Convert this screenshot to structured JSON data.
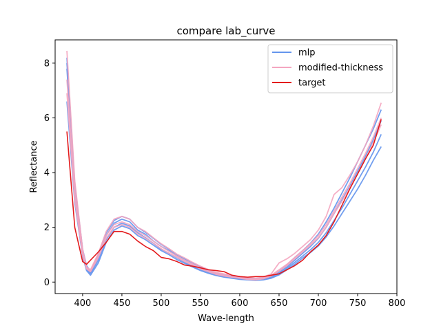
{
  "chart_data": {
    "type": "line",
    "title": "compare lab_curve",
    "xlabel": "Wave-length",
    "ylabel": "Reflectance",
    "xlim": [
      365,
      800
    ],
    "ylim": [
      -0.42,
      8.85
    ],
    "xticks": [
      400,
      450,
      500,
      550,
      600,
      650,
      700,
      750,
      800
    ],
    "yticks": [
      0,
      2,
      4,
      6,
      8
    ],
    "grid": false,
    "legend_position": "top-right",
    "x": [
      380,
      390,
      400,
      405,
      410,
      420,
      430,
      440,
      450,
      460,
      470,
      480,
      490,
      500,
      510,
      520,
      530,
      540,
      550,
      560,
      570,
      580,
      590,
      600,
      610,
      620,
      630,
      640,
      650,
      660,
      670,
      680,
      690,
      700,
      710,
      720,
      730,
      740,
      750,
      760,
      770,
      780
    ],
    "series": [
      {
        "name": "mlp",
        "color": "#6495ed",
        "curves": [
          [
            8.2,
            3.4,
            1.1,
            0.5,
            0.35,
            0.9,
            1.7,
            2.15,
            2.3,
            2.2,
            1.9,
            1.75,
            1.5,
            1.3,
            1.15,
            0.95,
            0.8,
            0.65,
            0.5,
            0.4,
            0.3,
            0.25,
            0.2,
            0.15,
            0.12,
            0.1,
            0.12,
            0.2,
            0.35,
            0.55,
            0.8,
            1.05,
            1.3,
            1.6,
            2.0,
            2.5,
            3.0,
            3.5,
            4.05,
            4.6,
            5.2,
            5.9
          ],
          [
            7.8,
            3.2,
            1.0,
            0.45,
            0.3,
            0.8,
            1.55,
            2.0,
            2.15,
            2.05,
            1.8,
            1.62,
            1.42,
            1.2,
            1.05,
            0.88,
            0.72,
            0.58,
            0.45,
            0.35,
            0.26,
            0.2,
            0.15,
            0.12,
            0.1,
            0.08,
            0.1,
            0.16,
            0.3,
            0.5,
            0.72,
            0.95,
            1.18,
            1.45,
            1.8,
            2.25,
            2.7,
            3.2,
            3.7,
            4.2,
            4.75,
            5.4
          ],
          [
            6.6,
            2.9,
            0.95,
            0.42,
            0.25,
            0.7,
            1.45,
            1.9,
            2.05,
            1.95,
            1.7,
            1.55,
            1.35,
            1.15,
            1.0,
            0.82,
            0.68,
            0.55,
            0.42,
            0.32,
            0.24,
            0.18,
            0.14,
            0.1,
            0.08,
            0.06,
            0.08,
            0.14,
            0.26,
            0.45,
            0.65,
            0.88,
            1.08,
            1.32,
            1.65,
            2.05,
            2.5,
            2.95,
            3.4,
            3.9,
            4.45,
            4.95
          ],
          [
            8.0,
            3.6,
            1.2,
            0.6,
            0.4,
            1.0,
            1.8,
            2.25,
            2.4,
            2.3,
            2.0,
            1.82,
            1.6,
            1.38,
            1.2,
            1.0,
            0.85,
            0.7,
            0.55,
            0.44,
            0.33,
            0.28,
            0.22,
            0.18,
            0.15,
            0.13,
            0.15,
            0.24,
            0.4,
            0.62,
            0.9,
            1.15,
            1.42,
            1.75,
            2.2,
            2.7,
            3.25,
            3.8,
            4.4,
            5.0,
            5.6,
            6.3
          ]
        ]
      },
      {
        "name": "modified-thickness",
        "color": "#f4a6c0",
        "curves": [
          [
            8.45,
            3.7,
            1.2,
            0.55,
            0.45,
            1.05,
            1.85,
            2.3,
            2.4,
            2.3,
            2.0,
            1.85,
            1.62,
            1.4,
            1.22,
            1.02,
            0.88,
            0.72,
            0.58,
            0.46,
            0.35,
            0.3,
            0.25,
            0.2,
            0.16,
            0.14,
            0.18,
            0.3,
            0.7,
            0.85,
            1.05,
            1.3,
            1.55,
            1.9,
            2.4,
            3.2,
            3.45,
            3.9,
            4.4,
            5.0,
            5.7,
            6.55
          ],
          [
            7.4,
            3.3,
            1.05,
            0.5,
            0.4,
            0.95,
            1.7,
            2.1,
            2.2,
            2.1,
            1.85,
            1.7,
            1.5,
            1.3,
            1.12,
            0.95,
            0.8,
            0.66,
            0.52,
            0.42,
            0.32,
            0.26,
            0.2,
            0.16,
            0.12,
            0.1,
            0.14,
            0.25,
            0.45,
            0.65,
            0.9,
            1.15,
            1.4,
            1.7,
            2.1,
            2.6,
            3.1,
            3.6,
            4.15,
            4.7,
            5.3,
            6.0
          ],
          [
            6.9,
            3.0,
            1.0,
            0.48,
            0.38,
            0.9,
            1.6,
            2.0,
            2.1,
            2.0,
            1.76,
            1.6,
            1.42,
            1.22,
            1.05,
            0.9,
            0.75,
            0.62,
            0.48,
            0.38,
            0.28,
            0.22,
            0.18,
            0.14,
            0.1,
            0.08,
            0.12,
            0.22,
            0.4,
            0.6,
            0.85,
            1.1,
            1.35,
            1.62,
            2.0,
            2.5,
            2.95,
            3.45,
            3.95,
            4.5,
            5.1,
            5.75
          ]
        ]
      },
      {
        "name": "target",
        "color": "#e31a1c",
        "curves": [
          [
            5.5,
            2.0,
            0.75,
            0.65,
            0.8,
            1.1,
            1.45,
            1.85,
            1.85,
            1.75,
            1.5,
            1.3,
            1.15,
            0.9,
            0.85,
            0.75,
            0.62,
            0.58,
            0.52,
            0.45,
            0.42,
            0.38,
            0.25,
            0.2,
            0.18,
            0.2,
            0.2,
            0.25,
            0.3,
            0.45,
            0.6,
            0.8,
            1.1,
            1.35,
            1.7,
            2.2,
            2.8,
            3.4,
            3.95,
            4.5,
            5.0,
            5.95
          ]
        ]
      }
    ]
  }
}
